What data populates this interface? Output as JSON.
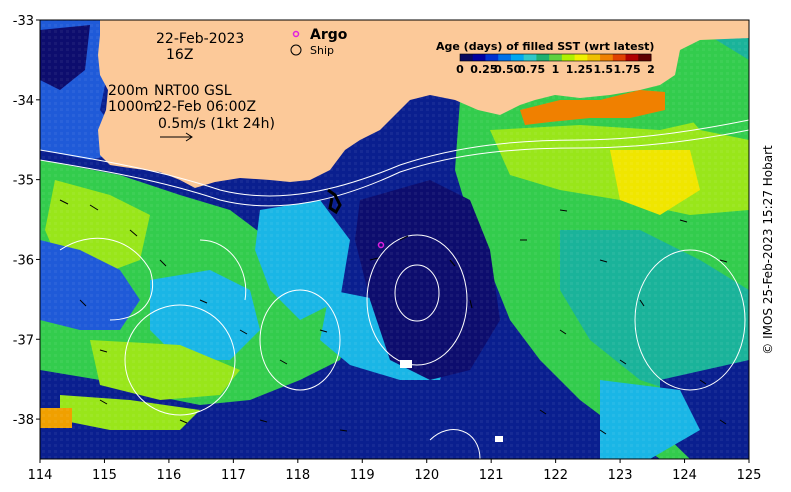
{
  "header": {
    "date": "22-Feb-2023",
    "hour": "16Z",
    "depth_line1": "200m",
    "depth_line2": "1000m",
    "product": "NRT00 GSL",
    "product_time": "22-Feb 06:00Z",
    "scale_label": "0.5m/s (1kt 24h)"
  },
  "legend": {
    "argo_label": "Argo",
    "argo_color": "#e020e0",
    "ship_label": "Ship"
  },
  "colorbar": {
    "title": "Age (days) of filled SST (wrt latest)",
    "tick_labels": [
      "0",
      "0.25",
      "0.50",
      "0.75",
      "1",
      "1.25",
      "1.5",
      "1.75",
      "2"
    ],
    "colors": [
      "#08085f",
      "#0000a0",
      "#0030d0",
      "#0070e8",
      "#00a8f0",
      "#30c8c8",
      "#20b070",
      "#60d040",
      "#b0f000",
      "#f0f000",
      "#f0c000",
      "#f08000",
      "#e04000",
      "#b00000",
      "#600000"
    ]
  },
  "axes": {
    "x_ticks": [
      "114",
      "115",
      "116",
      "117",
      "118",
      "119",
      "120",
      "121",
      "122",
      "123",
      "124",
      "125"
    ],
    "y_ticks": [
      "-33",
      "-34",
      "-35",
      "-36",
      "-37",
      "-38"
    ],
    "xlim": [
      114,
      125
    ],
    "ylim": [
      -38.5,
      -33
    ]
  },
  "colors": {
    "land": "#fcc999",
    "deep_blue": "#0a1f8f",
    "navy": "#0d0d6e",
    "mid_blue": "#1f5ad8",
    "light_blue": "#1ab6e6",
    "teal": "#1ab39a",
    "green": "#33cc4d",
    "lime": "#99e61a",
    "yellow": "#f0e600",
    "orange": "#f08000"
  },
  "credit": "© IMOS 25-Feb-2023 15:27 Hobart"
}
